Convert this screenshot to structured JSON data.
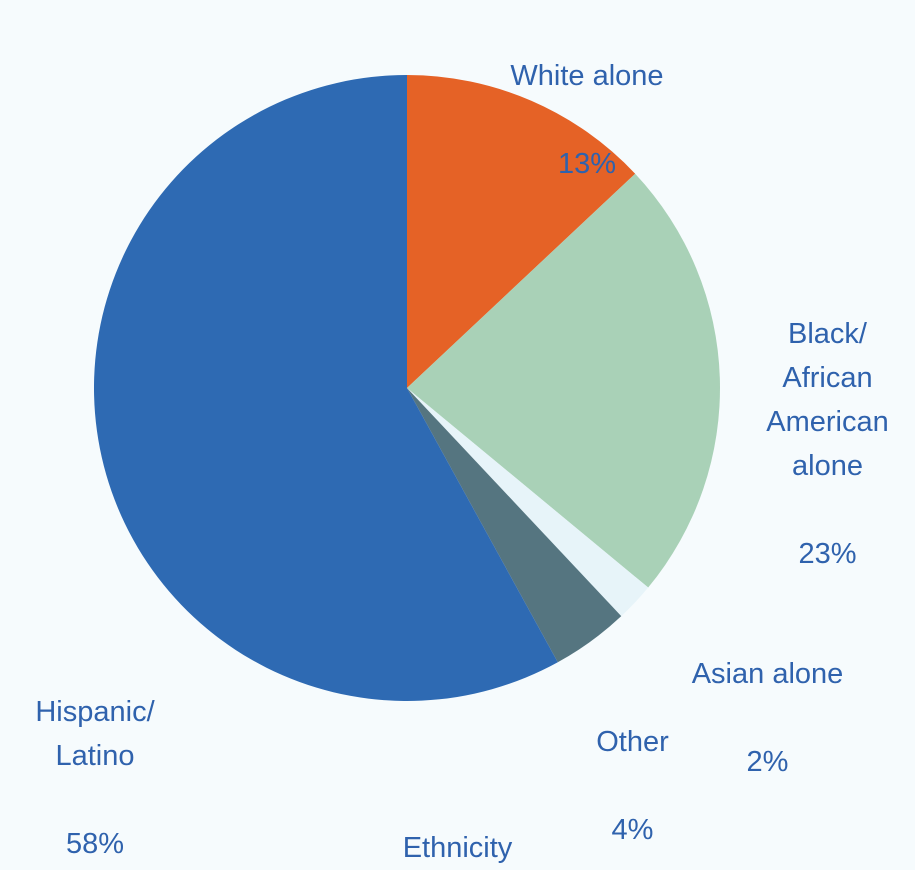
{
  "chart_data": {
    "type": "pie",
    "title": "",
    "xlabel": "Ethnicity",
    "slices": [
      {
        "label": "White alone",
        "value": 13,
        "percent_text": "13%",
        "color": "#e56226"
      },
      {
        "label": "Black/\nAfrican\nAmerican\nalone",
        "value": 23,
        "percent_text": "23%",
        "color": "#a9d1b7"
      },
      {
        "label": "Asian alone",
        "value": 2,
        "percent_text": "2%",
        "color": "#e7f4f9"
      },
      {
        "label": "Other",
        "value": 4,
        "percent_text": "4%",
        "color": "#557580"
      },
      {
        "label": "Hispanic/\nLatino",
        "value": 58,
        "percent_text": "58%",
        "color": "#2e6ab3"
      }
    ]
  }
}
